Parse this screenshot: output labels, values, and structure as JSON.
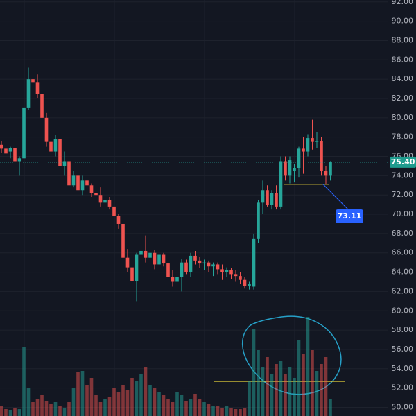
{
  "chart_data": {
    "type": "candlestick",
    "open": [
      77.2,
      76.8,
      76.5,
      76.9,
      75.5,
      75.8,
      81.0,
      84.0,
      83.7,
      82.5,
      80.0,
      77.5,
      76.5,
      77.8,
      75.0,
      75.5,
      73.0,
      74.0,
      72.5,
      73.5,
      73.0,
      72.2,
      72.0,
      71.2,
      71.5,
      70.8,
      69.8,
      69.0,
      65.5,
      64.5,
      63.1,
      65.8,
      66.2,
      65.5,
      66.0,
      64.8,
      65.8,
      64.9,
      63.5,
      63.0,
      63.5,
      65.0,
      64.0,
      65.7,
      65.2,
      64.9,
      65.0,
      64.6,
      64.8,
      64.3,
      64.0,
      64.2,
      63.8,
      63.6,
      63.2,
      62.6,
      62.5,
      67.5,
      71.2,
      72.5,
      71.0,
      72.2,
      70.8,
      75.5,
      74.0,
      74.5,
      74.8,
      76.8,
      76.5,
      77.9,
      77.5,
      77.6,
      74.5,
      74.0
    ],
    "high": [
      77.6,
      77.3,
      77.0,
      77.0,
      76.0,
      81.4,
      85.2,
      86.5,
      84.5,
      82.8,
      80.5,
      78.0,
      78.2,
      78.0,
      76.5,
      76.0,
      74.5,
      74.2,
      74.0,
      73.8,
      73.2,
      72.5,
      72.8,
      71.8,
      71.8,
      71.0,
      70.0,
      69.2,
      66.4,
      66.0,
      66.0,
      67.4,
      67.8,
      66.5,
      66.3,
      66.0,
      66.0,
      65.5,
      64.2,
      64.0,
      65.4,
      65.3,
      66.0,
      66.2,
      65.6,
      65.3,
      65.2,
      65.0,
      65.0,
      64.8,
      64.5,
      64.4,
      64.2,
      64.0,
      63.5,
      63.0,
      68.0,
      71.5,
      73.5,
      73.0,
      72.5,
      73.0,
      76.0,
      76.0,
      76.0,
      75.2,
      77.0,
      78.0,
      78.3,
      79.8,
      78.5,
      78.0,
      75.0,
      75.5
    ],
    "low": [
      76.4,
      76.0,
      75.8,
      75.2,
      74.0,
      75.6,
      80.8,
      83.0,
      82.0,
      79.5,
      77.0,
      76.0,
      76.0,
      74.5,
      74.0,
      72.5,
      72.8,
      72.0,
      72.0,
      72.4,
      71.8,
      71.5,
      70.8,
      70.5,
      70.5,
      69.3,
      68.5,
      65.0,
      64.0,
      62.8,
      61.0,
      65.2,
      65.0,
      64.4,
      64.3,
      64.5,
      64.6,
      63.0,
      62.5,
      62.0,
      62.0,
      63.8,
      63.5,
      64.8,
      64.4,
      64.2,
      64.0,
      63.6,
      63.8,
      63.2,
      63.5,
      63.3,
      63.0,
      62.8,
      62.3,
      62.2,
      62.2,
      67.0,
      70.0,
      70.8,
      70.5,
      70.5,
      70.5,
      73.5,
      73.2,
      73.3,
      73.8,
      74.2,
      76.0,
      76.7,
      76.9,
      74.0,
      73.1,
      73.5
    ],
    "close": [
      76.8,
      76.3,
      76.9,
      75.5,
      75.8,
      81.0,
      84.0,
      83.7,
      82.5,
      80.0,
      77.5,
      76.5,
      77.8,
      75.0,
      75.5,
      73.0,
      74.0,
      72.5,
      73.5,
      73.0,
      72.2,
      72.0,
      71.2,
      71.5,
      70.8,
      69.8,
      69.0,
      65.5,
      64.5,
      63.1,
      65.8,
      66.2,
      65.5,
      66.0,
      64.8,
      65.8,
      64.9,
      63.5,
      63.0,
      63.5,
      65.0,
      64.0,
      65.7,
      65.2,
      64.9,
      65.0,
      64.6,
      64.8,
      64.3,
      64.0,
      64.2,
      63.8,
      63.6,
      63.2,
      62.6,
      62.8,
      67.5,
      71.2,
      72.5,
      71.0,
      72.2,
      70.8,
      75.5,
      74.0,
      75.6,
      74.8,
      76.8,
      76.5,
      77.9,
      77.5,
      77.6,
      74.5,
      74.0,
      75.4
    ],
    "volume": [
      15,
      10,
      8,
      12,
      10,
      100,
      40,
      20,
      25,
      30,
      22,
      18,
      20,
      15,
      12,
      20,
      40,
      63,
      65,
      45,
      55,
      30,
      20,
      25,
      28,
      40,
      35,
      45,
      38,
      55,
      50,
      60,
      70,
      45,
      40,
      35,
      30,
      25,
      20,
      35,
      30,
      22,
      25,
      32,
      25,
      20,
      18,
      15,
      14,
      12,
      15,
      12,
      10,
      10,
      12,
      50,
      125,
      95,
      70,
      85,
      60,
      75,
      80,
      60,
      70,
      55,
      110,
      90,
      143,
      95,
      65,
      75,
      85,
      25
    ],
    "vlim": [
      0,
      600
    ],
    "up_color": "#26a69a",
    "down_color": "#ef5350",
    "ylim": [
      49.1,
      92.2
    ],
    "yticks": [
      {
        "value": 50,
        "label": "50.00"
      },
      {
        "value": 52,
        "label": "52.00"
      },
      {
        "value": 54,
        "label": "54.00"
      },
      {
        "value": 56,
        "label": "56.00"
      },
      {
        "value": 58,
        "label": "58.00"
      },
      {
        "value": 60,
        "label": "60.00"
      },
      {
        "value": 62,
        "label": "62.00"
      },
      {
        "value": 64,
        "label": "64.00"
      },
      {
        "value": 66,
        "label": "66.00"
      },
      {
        "value": 68,
        "label": "68.00"
      },
      {
        "value": 70,
        "label": "70.00"
      },
      {
        "value": 72,
        "label": "72.00"
      },
      {
        "value": 74,
        "label": "74.00"
      },
      {
        "value": 76,
        "label": "76.00"
      },
      {
        "value": 78,
        "label": "78.00"
      },
      {
        "value": 80,
        "label": "80.00"
      },
      {
        "value": 82,
        "label": "82.00"
      },
      {
        "value": 84,
        "label": "84.00"
      },
      {
        "value": 86,
        "label": "86.00"
      },
      {
        "value": 88,
        "label": "88.00"
      },
      {
        "value": 90,
        "label": "90.00"
      },
      {
        "value": 92,
        "label": "92.00"
      }
    ],
    "grid": true,
    "last_price": {
      "value": 75.4,
      "label": "75.40"
    },
    "level": {
      "value": 73.11,
      "label": "73.11"
    }
  }
}
